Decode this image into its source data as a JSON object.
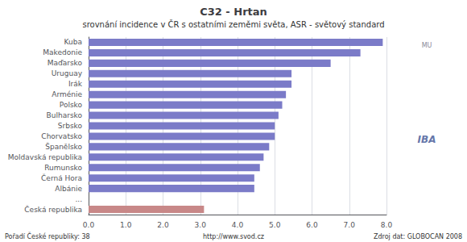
{
  "chart_data": {
    "type": "bar",
    "orientation": "horizontal",
    "title": "C32 - Hrtan",
    "subtitle": "srovnání incidence v ČR s ostatními zeměmi světa, ASR - světový standard",
    "categories": [
      "Kuba",
      "Makedonie",
      "Maďarsko",
      "Uruguay",
      "Irák",
      "Arménie",
      "Polsko",
      "Bulharsko",
      "Srbsko",
      "Chorvatsko",
      "Španělsko",
      "Moldavská republika",
      "Rumunsko",
      "Černá Hora",
      "Albánie",
      "...",
      "Česká republika"
    ],
    "values": [
      7.9,
      7.3,
      6.5,
      5.45,
      5.45,
      5.3,
      5.2,
      5.1,
      5.0,
      5.0,
      4.85,
      4.7,
      4.6,
      4.45,
      4.45,
      0.0,
      3.1
    ],
    "colors": [
      "#7b7bc8",
      "#7b7bc8",
      "#7b7bc8",
      "#7b7bc8",
      "#7b7bc8",
      "#7b7bc8",
      "#7b7bc8",
      "#7b7bc8",
      "#7b7bc8",
      "#7b7bc8",
      "#7b7bc8",
      "#7b7bc8",
      "#7b7bc8",
      "#7b7bc8",
      "#7b7bc8",
      "#dce6f0",
      "#c88888"
    ],
    "xlim": [
      0,
      8.0
    ],
    "xticks": [
      {
        "value": 0.0,
        "label": "0.0"
      },
      {
        "value": 1.0,
        "label": "1.0"
      },
      {
        "value": 2.0,
        "label": "2.0"
      },
      {
        "value": 3.0,
        "label": "3.0"
      },
      {
        "value": 4.0,
        "label": "4.0"
      },
      {
        "value": 5.0,
        "label": "5.0"
      },
      {
        "value": 6.0,
        "label": "6.0"
      },
      {
        "value": 7.0,
        "label": "7.0"
      },
      {
        "value": 8.0,
        "label": "8.0"
      }
    ],
    "grid": true,
    "annotations": [
      "Pořadí České republiky: 38",
      "http://www.svod.cz",
      "Zdroj dat: GLOBOCAN 2008",
      "MU",
      "IBA"
    ]
  }
}
